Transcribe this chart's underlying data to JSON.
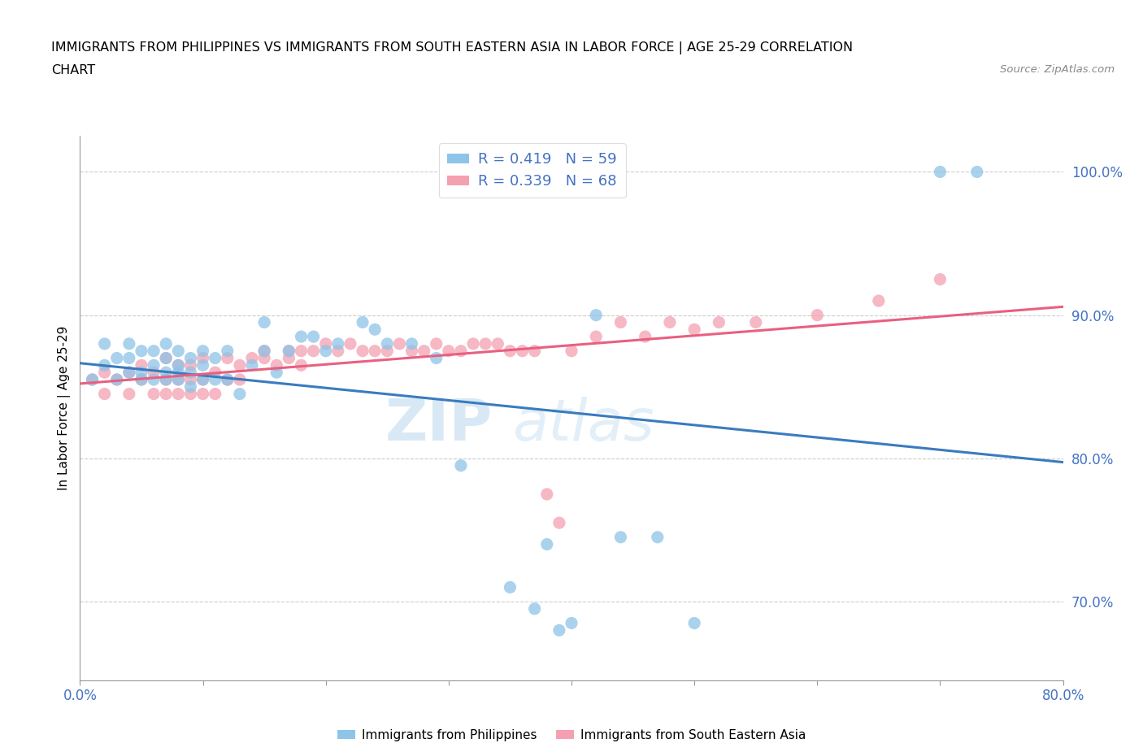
{
  "title_line1": "IMMIGRANTS FROM PHILIPPINES VS IMMIGRANTS FROM SOUTH EASTERN ASIA IN LABOR FORCE | AGE 25-29 CORRELATION",
  "title_line2": "CHART",
  "source_text": "Source: ZipAtlas.com",
  "ylabel": "In Labor Force | Age 25-29",
  "xlim": [
    0.0,
    0.8
  ],
  "ylim": [
    0.645,
    1.025
  ],
  "yticks": [
    0.7,
    0.8,
    0.9,
    1.0
  ],
  "ytick_labels": [
    "70.0%",
    "80.0%",
    "90.0%",
    "100.0%"
  ],
  "xticks": [
    0.0,
    0.1,
    0.2,
    0.3,
    0.4,
    0.5,
    0.6,
    0.7,
    0.8
  ],
  "xtick_labels": [
    "0.0%",
    "",
    "",
    "",
    "",
    "",
    "",
    "",
    "80.0%"
  ],
  "blue_color": "#8ec4e8",
  "pink_color": "#f4a0b0",
  "blue_line_color": "#3a7bbf",
  "pink_line_color": "#e86080",
  "tick_color": "#4472c4",
  "R_blue": 0.419,
  "N_blue": 59,
  "R_pink": 0.339,
  "N_pink": 68,
  "legend_label_blue": "Immigrants from Philippines",
  "legend_label_pink": "Immigrants from South Eastern Asia",
  "watermark_zip": "ZIP",
  "watermark_atlas": "atlas",
  "blue_scatter_x": [
    0.01,
    0.02,
    0.02,
    0.03,
    0.03,
    0.04,
    0.04,
    0.04,
    0.05,
    0.05,
    0.05,
    0.06,
    0.06,
    0.06,
    0.07,
    0.07,
    0.07,
    0.07,
    0.08,
    0.08,
    0.08,
    0.08,
    0.09,
    0.09,
    0.09,
    0.1,
    0.1,
    0.1,
    0.11,
    0.11,
    0.12,
    0.12,
    0.13,
    0.14,
    0.15,
    0.15,
    0.16,
    0.17,
    0.18,
    0.19,
    0.2,
    0.21,
    0.23,
    0.24,
    0.25,
    0.27,
    0.29,
    0.31,
    0.35,
    0.37,
    0.38,
    0.39,
    0.4,
    0.42,
    0.44,
    0.47,
    0.5,
    0.7,
    0.73
  ],
  "blue_scatter_y": [
    0.855,
    0.865,
    0.88,
    0.87,
    0.855,
    0.86,
    0.87,
    0.88,
    0.855,
    0.86,
    0.875,
    0.855,
    0.865,
    0.875,
    0.855,
    0.86,
    0.87,
    0.88,
    0.855,
    0.86,
    0.865,
    0.875,
    0.85,
    0.86,
    0.87,
    0.855,
    0.865,
    0.875,
    0.855,
    0.87,
    0.855,
    0.875,
    0.845,
    0.865,
    0.875,
    0.895,
    0.86,
    0.875,
    0.885,
    0.885,
    0.875,
    0.88,
    0.895,
    0.89,
    0.88,
    0.88,
    0.87,
    0.795,
    0.71,
    0.695,
    0.74,
    0.68,
    0.685,
    0.9,
    0.745,
    0.745,
    0.685,
    1.0,
    1.0
  ],
  "pink_scatter_x": [
    0.01,
    0.02,
    0.02,
    0.03,
    0.04,
    0.04,
    0.05,
    0.05,
    0.06,
    0.06,
    0.07,
    0.07,
    0.07,
    0.08,
    0.08,
    0.08,
    0.09,
    0.09,
    0.09,
    0.1,
    0.1,
    0.1,
    0.11,
    0.11,
    0.12,
    0.12,
    0.13,
    0.13,
    0.14,
    0.15,
    0.15,
    0.16,
    0.17,
    0.17,
    0.18,
    0.18,
    0.19,
    0.2,
    0.21,
    0.22,
    0.23,
    0.24,
    0.25,
    0.26,
    0.27,
    0.28,
    0.29,
    0.3,
    0.31,
    0.32,
    0.33,
    0.34,
    0.35,
    0.36,
    0.37,
    0.38,
    0.39,
    0.4,
    0.42,
    0.44,
    0.46,
    0.48,
    0.5,
    0.52,
    0.55,
    0.6,
    0.65,
    0.7
  ],
  "pink_scatter_y": [
    0.855,
    0.845,
    0.86,
    0.855,
    0.845,
    0.86,
    0.855,
    0.865,
    0.845,
    0.86,
    0.845,
    0.855,
    0.87,
    0.845,
    0.855,
    0.865,
    0.845,
    0.855,
    0.865,
    0.845,
    0.855,
    0.87,
    0.845,
    0.86,
    0.855,
    0.87,
    0.855,
    0.865,
    0.87,
    0.87,
    0.875,
    0.865,
    0.87,
    0.875,
    0.865,
    0.875,
    0.875,
    0.88,
    0.875,
    0.88,
    0.875,
    0.875,
    0.875,
    0.88,
    0.875,
    0.875,
    0.88,
    0.875,
    0.875,
    0.88,
    0.88,
    0.88,
    0.875,
    0.875,
    0.875,
    0.775,
    0.755,
    0.875,
    0.885,
    0.895,
    0.885,
    0.895,
    0.89,
    0.895,
    0.895,
    0.9,
    0.91,
    0.925
  ]
}
